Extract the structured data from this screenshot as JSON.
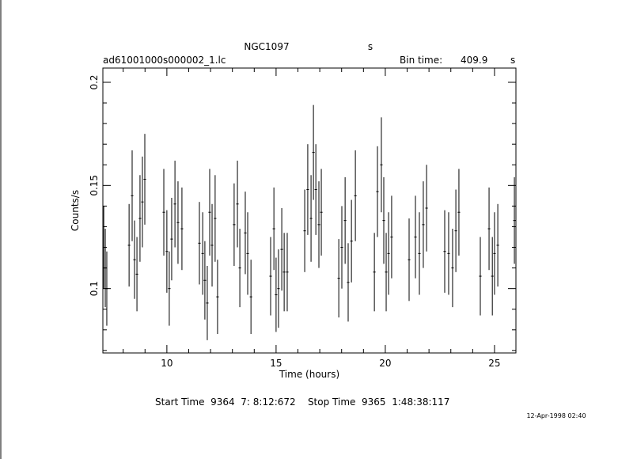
{
  "chart_data": {
    "type": "errorbar",
    "title": "NGC1097",
    "title_unit": "s",
    "subtitle": "ad61001000s000002_1.lc",
    "bin_time_label": "Bin time:",
    "bin_time": "409.9",
    "bin_time_unit": "s",
    "x_label": "Time (hours)",
    "y_label": "Counts/s",
    "footer": "Start Time  9364  7: 8:12:672    Stop Time  9365  1:48:38:117",
    "date": "12-Apr-1998 02:40",
    "color": "#000000",
    "xlim": [
      7.07,
      25.98
    ],
    "ylim": [
      0.0688,
      0.2069
    ],
    "xticks": [
      10,
      15,
      20,
      25
    ],
    "yticks": [
      0.1,
      0.15,
      0.2
    ],
    "xminorticks": [
      8,
      9,
      11,
      12,
      13,
      14,
      16,
      17,
      18,
      19,
      21,
      22,
      23,
      24
    ],
    "yminorticks": [
      0.07,
      0.08,
      0.09,
      0.11,
      0.12,
      0.13,
      0.14,
      0.16,
      0.17,
      0.18,
      0.19
    ],
    "x": [
      7.11,
      7.18,
      7.25,
      8.27,
      8.41,
      8.52,
      8.63,
      8.77,
      8.88,
      8.99,
      9.86,
      10.0,
      10.11,
      10.22,
      10.37,
      10.51,
      10.69,
      11.49,
      11.64,
      11.74,
      11.85,
      11.96,
      12.07,
      12.21,
      12.32,
      13.08,
      13.23,
      13.34,
      13.59,
      13.7,
      13.85,
      14.75,
      14.9,
      15.0,
      15.11,
      15.26,
      15.37,
      15.51,
      16.31,
      16.45,
      16.6,
      16.71,
      16.82,
      16.96,
      17.07,
      17.87,
      18.01,
      18.16,
      18.3,
      18.45,
      18.63,
      19.5,
      19.64,
      19.82,
      19.93,
      20.04,
      20.15,
      20.29,
      21.09,
      21.38,
      21.56,
      21.74,
      21.89,
      22.72,
      22.9,
      23.08,
      23.23,
      23.37,
      24.35,
      24.75,
      24.9,
      25.0,
      25.15,
      25.91
    ],
    "values": [
      0.12,
      0.11,
      0.1,
      0.121,
      0.145,
      0.114,
      0.107,
      0.134,
      0.142,
      0.153,
      0.137,
      0.118,
      0.1,
      0.124,
      0.141,
      0.132,
      0.129,
      0.122,
      0.117,
      0.104,
      0.093,
      0.137,
      0.121,
      0.134,
      0.096,
      0.131,
      0.141,
      0.11,
      0.127,
      0.117,
      0.096,
      0.106,
      0.129,
      0.097,
      0.1,
      0.119,
      0.108,
      0.108,
      0.128,
      0.148,
      0.134,
      0.166,
      0.148,
      0.131,
      0.137,
      0.105,
      0.12,
      0.133,
      0.103,
      0.123,
      0.145,
      0.108,
      0.147,
      0.16,
      0.133,
      0.108,
      0.117,
      0.125,
      0.114,
      0.125,
      0.117,
      0.131,
      0.139,
      0.118,
      0.117,
      0.11,
      0.128,
      0.137,
      0.106,
      0.129,
      0.106,
      0.117,
      0.121,
      0.133
    ],
    "errors": [
      0.02,
      0.019,
      0.018,
      0.02,
      0.022,
      0.019,
      0.018,
      0.021,
      0.022,
      0.022,
      0.021,
      0.02,
      0.018,
      0.02,
      0.021,
      0.02,
      0.02,
      0.02,
      0.02,
      0.019,
      0.018,
      0.021,
      0.02,
      0.021,
      0.018,
      0.02,
      0.021,
      0.019,
      0.02,
      0.02,
      0.018,
      0.019,
      0.02,
      0.018,
      0.019,
      0.02,
      0.019,
      0.019,
      0.02,
      0.022,
      0.021,
      0.023,
      0.022,
      0.021,
      0.021,
      0.019,
      0.02,
      0.021,
      0.019,
      0.02,
      0.022,
      0.019,
      0.022,
      0.023,
      0.021,
      0.019,
      0.02,
      0.02,
      0.02,
      0.02,
      0.02,
      0.021,
      0.021,
      0.02,
      0.02,
      0.019,
      0.02,
      0.021,
      0.019,
      0.02,
      0.019,
      0.02,
      0.02,
      0.021
    ]
  }
}
